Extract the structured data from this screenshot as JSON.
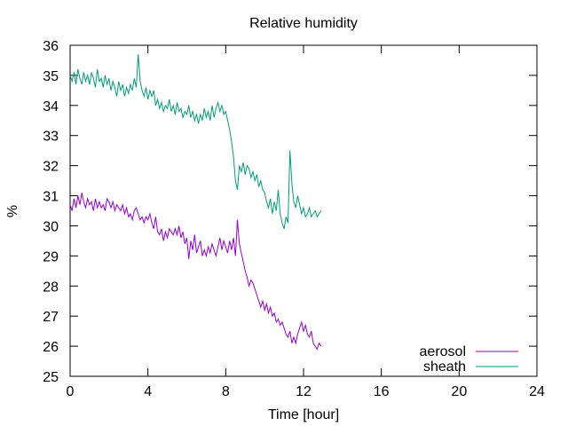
{
  "chart_data": {
    "type": "line",
    "title": "Relative humidity",
    "xlabel": "Time [hour]",
    "ylabel": "%",
    "xlim": [
      0,
      24
    ],
    "ylim": [
      25,
      36
    ],
    "xticks": [
      0,
      4,
      8,
      12,
      16,
      20,
      24
    ],
    "yticks": [
      25,
      26,
      27,
      28,
      29,
      30,
      31,
      32,
      33,
      34,
      35,
      36
    ],
    "grid": false,
    "legend_position": "bottom-right",
    "series": [
      {
        "name": "aerosol",
        "color": "#9400d3",
        "x": [
          0.0,
          0.1,
          0.2,
          0.3,
          0.4,
          0.5,
          0.6,
          0.7,
          0.8,
          0.9,
          1.0,
          1.1,
          1.2,
          1.3,
          1.4,
          1.5,
          1.6,
          1.7,
          1.8,
          1.9,
          2.0,
          2.1,
          2.2,
          2.3,
          2.4,
          2.5,
          2.6,
          2.7,
          2.8,
          2.9,
          3.0,
          3.1,
          3.2,
          3.3,
          3.4,
          3.5,
          3.6,
          3.7,
          3.8,
          3.9,
          4.0,
          4.1,
          4.2,
          4.3,
          4.4,
          4.5,
          4.6,
          4.7,
          4.8,
          4.9,
          5.0,
          5.1,
          5.2,
          5.3,
          5.4,
          5.5,
          5.6,
          5.7,
          5.8,
          5.9,
          6.0,
          6.1,
          6.2,
          6.3,
          6.4,
          6.5,
          6.6,
          6.7,
          6.8,
          6.9,
          7.0,
          7.1,
          7.2,
          7.3,
          7.4,
          7.5,
          7.6,
          7.7,
          7.8,
          7.9,
          8.0,
          8.1,
          8.2,
          8.3,
          8.4,
          8.5,
          8.6,
          8.7,
          8.8,
          8.9,
          9.0,
          9.1,
          9.2,
          9.3,
          9.4,
          9.5,
          9.6,
          9.7,
          9.8,
          9.9,
          10.0,
          10.1,
          10.2,
          10.3,
          10.4,
          10.5,
          10.6,
          10.7,
          10.8,
          10.9,
          11.0,
          11.1,
          11.2,
          11.3,
          11.4,
          11.5,
          11.6,
          11.7,
          11.8,
          11.9,
          12.0,
          12.1,
          12.2,
          12.3,
          12.4,
          12.5,
          12.6,
          12.7,
          12.8,
          12.9
        ],
        "y": [
          30.7,
          30.5,
          30.9,
          30.6,
          31.0,
          30.7,
          31.1,
          30.8,
          30.6,
          30.9,
          30.7,
          30.8,
          30.5,
          30.9,
          30.6,
          30.8,
          30.6,
          30.7,
          30.5,
          30.9,
          30.8,
          30.6,
          30.8,
          30.5,
          30.7,
          30.6,
          30.5,
          30.7,
          30.4,
          30.6,
          30.3,
          30.4,
          30.2,
          30.5,
          30.6,
          30.4,
          30.2,
          30.3,
          30.1,
          30.3,
          30.2,
          30.4,
          30.1,
          29.9,
          30.3,
          29.8,
          29.7,
          29.9,
          29.5,
          29.8,
          29.6,
          29.9,
          29.8,
          29.7,
          29.9,
          29.7,
          30.0,
          29.6,
          29.8,
          29.4,
          29.6,
          28.9,
          29.5,
          29.2,
          29.7,
          29.1,
          29.3,
          29.5,
          29.0,
          29.2,
          29.0,
          29.3,
          29.1,
          29.4,
          29.2,
          29.0,
          29.3,
          29.6,
          29.2,
          29.5,
          29.3,
          29.1,
          29.5,
          29.2,
          29.6,
          29.0,
          30.2,
          29.4,
          29.1,
          28.8,
          28.5,
          28.3,
          28.0,
          28.2,
          28.1,
          27.9,
          27.7,
          27.5,
          27.3,
          27.5,
          27.2,
          27.4,
          27.1,
          27.3,
          27.0,
          27.1,
          26.8,
          26.9,
          26.7,
          26.8,
          26.6,
          26.4,
          26.3,
          26.5,
          26.1,
          26.3,
          26.1,
          26.4,
          26.6,
          26.8,
          26.5,
          26.7,
          26.4,
          26.3,
          26.5,
          26.1,
          26.0,
          25.9,
          26.1,
          26.0
        ]
      },
      {
        "name": "sheath",
        "color": "#009e73",
        "x": [
          0.0,
          0.1,
          0.2,
          0.3,
          0.4,
          0.5,
          0.6,
          0.7,
          0.8,
          0.9,
          1.0,
          1.1,
          1.2,
          1.3,
          1.4,
          1.5,
          1.6,
          1.7,
          1.8,
          1.9,
          2.0,
          2.1,
          2.2,
          2.3,
          2.4,
          2.5,
          2.6,
          2.7,
          2.8,
          2.9,
          3.0,
          3.1,
          3.2,
          3.3,
          3.4,
          3.5,
          3.6,
          3.7,
          3.8,
          3.9,
          4.0,
          4.1,
          4.2,
          4.3,
          4.4,
          4.5,
          4.6,
          4.7,
          4.8,
          4.9,
          5.0,
          5.1,
          5.2,
          5.3,
          5.4,
          5.5,
          5.6,
          5.7,
          5.8,
          5.9,
          6.0,
          6.1,
          6.2,
          6.3,
          6.4,
          6.5,
          6.6,
          6.7,
          6.8,
          6.9,
          7.0,
          7.1,
          7.2,
          7.3,
          7.4,
          7.5,
          7.6,
          7.7,
          7.8,
          7.9,
          8.0,
          8.1,
          8.2,
          8.3,
          8.4,
          8.5,
          8.6,
          8.7,
          8.8,
          8.9,
          9.0,
          9.1,
          9.2,
          9.3,
          9.4,
          9.5,
          9.6,
          9.7,
          9.8,
          9.9,
          10.0,
          10.1,
          10.2,
          10.3,
          10.4,
          10.5,
          10.6,
          10.7,
          10.8,
          10.9,
          11.0,
          11.1,
          11.2,
          11.3,
          11.4,
          11.5,
          11.6,
          11.7,
          11.8,
          11.9,
          12.0,
          12.1,
          12.2,
          12.3,
          12.4,
          12.5,
          12.6,
          12.7,
          12.8,
          12.9
        ],
        "y": [
          35.0,
          34.8,
          35.1,
          34.7,
          35.2,
          34.9,
          34.7,
          35.1,
          34.8,
          35.0,
          34.7,
          35.1,
          34.9,
          34.6,
          35.2,
          34.8,
          34.9,
          34.6,
          35.0,
          34.7,
          34.9,
          34.5,
          34.8,
          34.6,
          34.3,
          34.8,
          34.5,
          34.7,
          34.3,
          34.6,
          34.4,
          34.7,
          34.5,
          34.9,
          34.6,
          35.7,
          34.8,
          34.5,
          34.3,
          34.6,
          34.2,
          34.5,
          34.3,
          34.5,
          34.0,
          34.2,
          33.9,
          34.1,
          33.8,
          34.0,
          33.9,
          34.2,
          33.8,
          34.0,
          33.7,
          34.1,
          33.8,
          33.9,
          33.6,
          33.8,
          33.7,
          34.0,
          33.6,
          33.8,
          33.5,
          33.7,
          33.4,
          33.7,
          33.5,
          33.9,
          33.6,
          33.8,
          33.5,
          34.0,
          33.6,
          33.9,
          34.1,
          33.8,
          34.0,
          33.7,
          33.8,
          33.5,
          33.2,
          32.8,
          32.3,
          31.5,
          31.2,
          32.0,
          31.8,
          32.1,
          31.7,
          32.0,
          31.9,
          31.6,
          31.8,
          31.5,
          31.7,
          31.3,
          31.5,
          31.2,
          31.1,
          30.8,
          30.6,
          30.9,
          30.4,
          30.8,
          30.5,
          31.2,
          30.4,
          30.1,
          29.9,
          30.3,
          30.1,
          32.5,
          31.4,
          30.8,
          30.6,
          31.0,
          30.7,
          30.4,
          30.6,
          30.3,
          30.4,
          30.6,
          30.3,
          30.4,
          30.5,
          30.3,
          30.4,
          30.5
        ]
      }
    ]
  }
}
